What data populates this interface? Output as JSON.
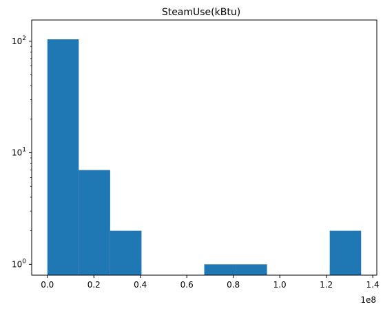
{
  "chart_data": {
    "type": "bar",
    "title": "SteamUse(kBtu)",
    "xlabel": "",
    "ylabel": "",
    "x_scale_label": "1e8",
    "y_scale": "log",
    "xlim": [
      -0.0675,
      1.4175
    ],
    "ylim": [
      0.8,
      155
    ],
    "x_ticks": [
      {
        "value": 0.0,
        "label": "0.0"
      },
      {
        "value": 0.2,
        "label": "0.2"
      },
      {
        "value": 0.4,
        "label": "0.4"
      },
      {
        "value": 0.6,
        "label": "0.6"
      },
      {
        "value": 0.8,
        "label": "0.8"
      },
      {
        "value": 1.0,
        "label": "1.0"
      },
      {
        "value": 1.2,
        "label": "1.2"
      },
      {
        "value": 1.4,
        "label": "1.4"
      }
    ],
    "y_ticks": [
      {
        "value": 1,
        "base": "10",
        "exp": "0"
      },
      {
        "value": 10,
        "base": "10",
        "exp": "1"
      },
      {
        "value": 100,
        "base": "10",
        "exp": "2"
      }
    ],
    "bins": [
      {
        "start": 0.0,
        "end": 0.135,
        "count": 104
      },
      {
        "start": 0.135,
        "end": 0.27,
        "count": 7
      },
      {
        "start": 0.27,
        "end": 0.405,
        "count": 2
      },
      {
        "start": 0.405,
        "end": 0.54,
        "count": 0
      },
      {
        "start": 0.54,
        "end": 0.675,
        "count": 0
      },
      {
        "start": 0.675,
        "end": 0.81,
        "count": 1
      },
      {
        "start": 0.81,
        "end": 0.945,
        "count": 1
      },
      {
        "start": 0.945,
        "end": 1.08,
        "count": 0
      },
      {
        "start": 1.08,
        "end": 1.215,
        "count": 0
      },
      {
        "start": 1.215,
        "end": 1.35,
        "count": 2
      }
    ],
    "bar_color": "#1f77b4",
    "grid": false,
    "legend": "none"
  }
}
